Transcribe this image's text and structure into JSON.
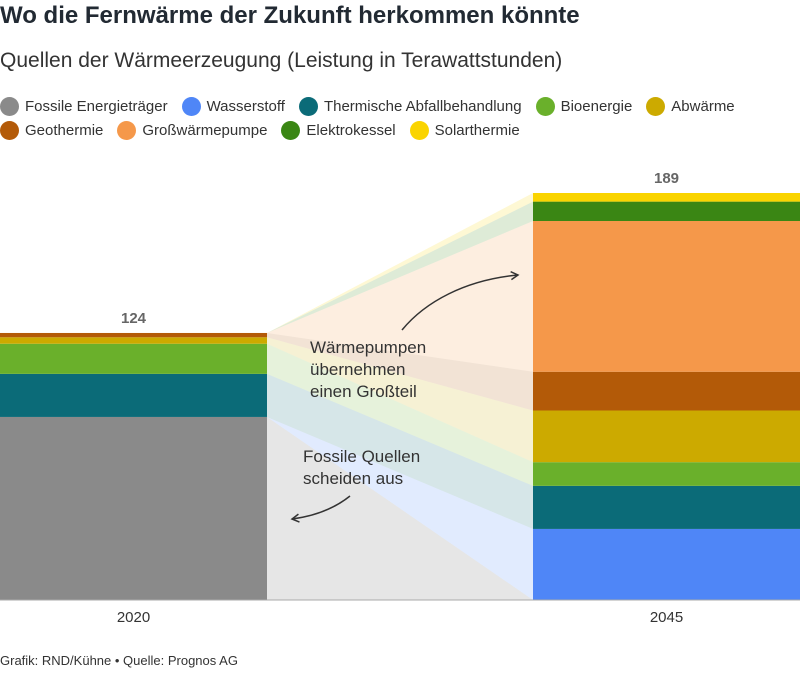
{
  "title": "Wo die Fernwärme der Zukunft herkommen könnte",
  "subtitle": "Quellen der Wärmeerzeugung (Leistung in Terawattstunden)",
  "footer": "Grafik: RND/Kühne • Quelle: Prognos AG",
  "annotations": {
    "heat_pumps": [
      "Wärmepumpen",
      "übernehmen",
      "einen Großteil"
    ],
    "fossil": [
      "Fossile Quellen",
      "scheiden aus"
    ]
  },
  "chart_data": {
    "type": "bar",
    "stacked": true,
    "categories": [
      "2020",
      "2045"
    ],
    "totals": [
      124,
      189
    ],
    "ylim": [
      0,
      189
    ],
    "grid": false,
    "legend_position": "top",
    "series": [
      {
        "name": "Fossile Energieträger",
        "color": "#8a8a8a",
        "values": [
          85,
          0
        ]
      },
      {
        "name": "Wasserstoff",
        "color": "#4f86f7",
        "values": [
          0,
          33
        ]
      },
      {
        "name": "Thermische Abfallbehandlung",
        "color": "#0b6b78",
        "values": [
          20,
          20
        ]
      },
      {
        "name": "Bioenergie",
        "color": "#6ab02b",
        "values": [
          14,
          11
        ]
      },
      {
        "name": "Abwärme",
        "color": "#ccaa00",
        "values": [
          3,
          24
        ]
      },
      {
        "name": "Geothermie",
        "color": "#b35a08",
        "values": [
          2,
          18
        ]
      },
      {
        "name": "Großwärmepumpe",
        "color": "#f5984a",
        "values": [
          0,
          70
        ]
      },
      {
        "name": "Elektrokessel",
        "color": "#3a8614",
        "values": [
          0,
          9
        ]
      },
      {
        "name": "Solarthermie",
        "color": "#fad400",
        "values": [
          0,
          4
        ]
      }
    ]
  }
}
